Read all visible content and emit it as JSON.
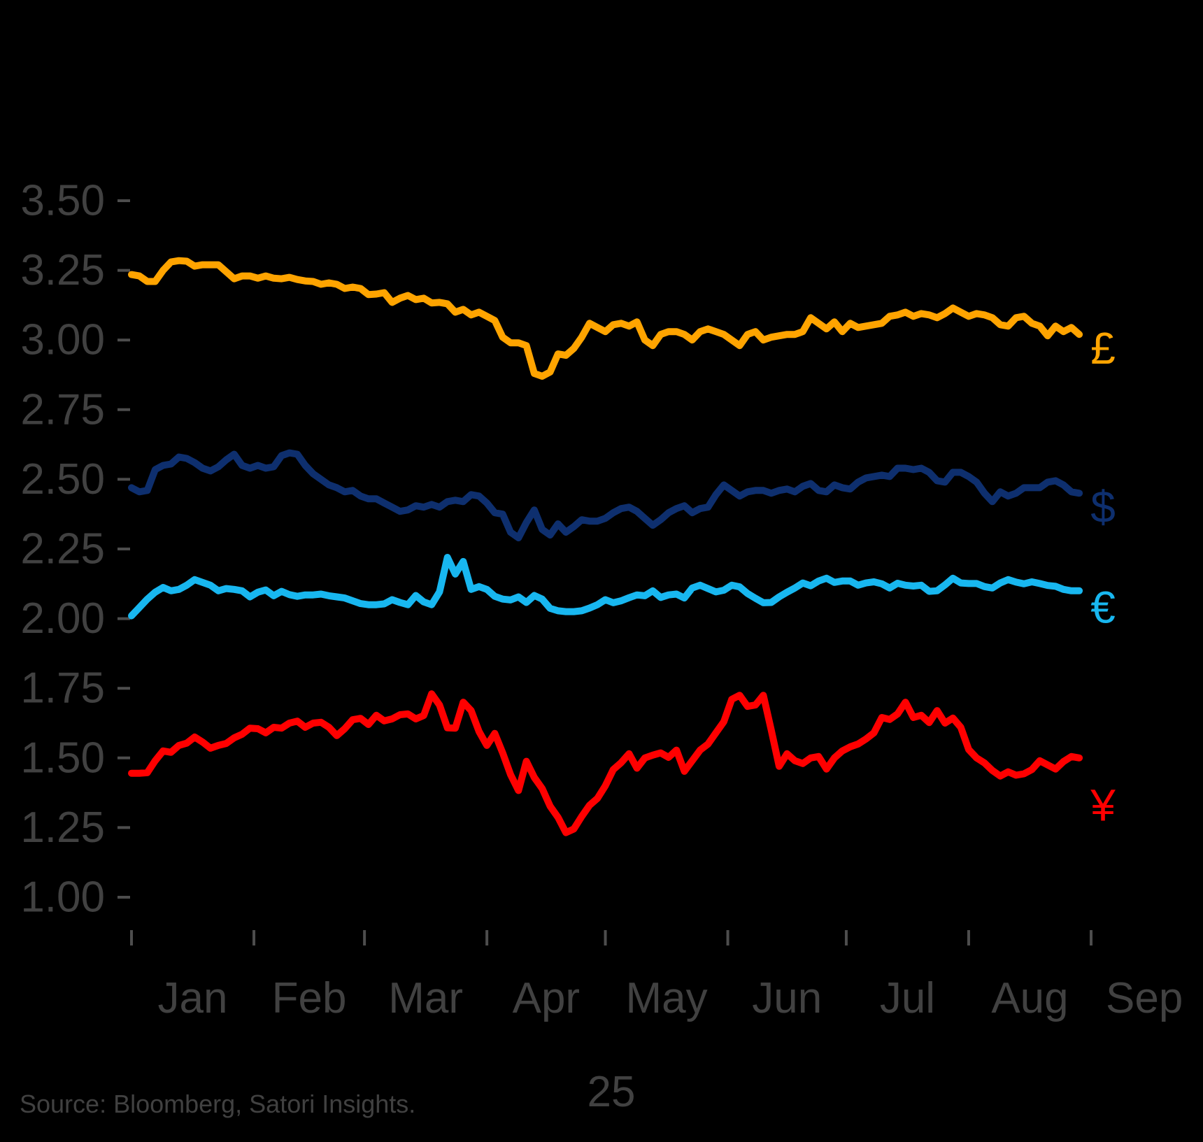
{
  "chart_data": {
    "type": "line",
    "title": "",
    "x_axis": {
      "tick_labels": [
        "Jan",
        "Feb",
        "Mar",
        "Apr",
        "May",
        "Jun",
        "Jul",
        "Aug",
        "Sep"
      ],
      "year_label": "25",
      "month_start_day_offsets": [
        0,
        31,
        59,
        90,
        120,
        151,
        181,
        212,
        243
      ]
    },
    "y_axis": {
      "min": 1.0,
      "max": 3.5,
      "step": 0.25,
      "tick_format_decimals": 2
    },
    "sampling": {
      "start_day": 0,
      "step_days": 2
    },
    "grid": false,
    "legend_position": "right-of-line-end",
    "series": [
      {
        "name": "GBP",
        "symbol": "£",
        "color": "#FFA400",
        "label_value": 2.97,
        "values": [
          3.235,
          3.23,
          3.21,
          3.21,
          3.25,
          3.28,
          3.285,
          3.283,
          3.265,
          3.27,
          3.27,
          3.27,
          3.245,
          3.22,
          3.23,
          3.23,
          3.222,
          3.23,
          3.222,
          3.22,
          3.225,
          3.217,
          3.212,
          3.21,
          3.2,
          3.205,
          3.2,
          3.185,
          3.19,
          3.185,
          3.163,
          3.165,
          3.17,
          3.135,
          3.15,
          3.16,
          3.145,
          3.15,
          3.133,
          3.135,
          3.13,
          3.1,
          3.11,
          3.09,
          3.1,
          3.085,
          3.07,
          3.01,
          2.99,
          2.99,
          2.98,
          2.88,
          2.87,
          2.885,
          2.95,
          2.945,
          2.97,
          3.01,
          3.06,
          3.045,
          3.03,
          3.055,
          3.06,
          3.05,
          3.065,
          3.0,
          2.98,
          3.02,
          3.03,
          3.03,
          3.02,
          3.0,
          3.03,
          3.04,
          3.03,
          3.02,
          3.0,
          2.98,
          3.02,
          3.03,
          3.0,
          3.01,
          3.015,
          3.02,
          3.02,
          3.03,
          3.08,
          3.06,
          3.04,
          3.065,
          3.03,
          3.06,
          3.045,
          3.05,
          3.055,
          3.06,
          3.085,
          3.09,
          3.1,
          3.085,
          3.095,
          3.09,
          3.08,
          3.095,
          3.115,
          3.1,
          3.085,
          3.095,
          3.09,
          3.08,
          3.055,
          3.05,
          3.08,
          3.085,
          3.06,
          3.05,
          3.015,
          3.05,
          3.03,
          3.045,
          3.02
        ]
      },
      {
        "name": "USD",
        "symbol": "$",
        "color": "#0E2F6E",
        "label_value": 2.4,
        "values": [
          2.47,
          2.455,
          2.46,
          2.535,
          2.55,
          2.555,
          2.58,
          2.575,
          2.56,
          2.54,
          2.53,
          2.545,
          2.57,
          2.59,
          2.55,
          2.54,
          2.55,
          2.54,
          2.545,
          2.585,
          2.595,
          2.59,
          2.55,
          2.52,
          2.5,
          2.48,
          2.47,
          2.455,
          2.46,
          2.44,
          2.43,
          2.43,
          2.415,
          2.4,
          2.385,
          2.39,
          2.405,
          2.4,
          2.41,
          2.4,
          2.42,
          2.425,
          2.42,
          2.445,
          2.44,
          2.415,
          2.38,
          2.375,
          2.31,
          2.29,
          2.345,
          2.39,
          2.32,
          2.3,
          2.34,
          2.31,
          2.33,
          2.355,
          2.35,
          2.35,
          2.36,
          2.38,
          2.395,
          2.4,
          2.385,
          2.36,
          2.335,
          2.355,
          2.38,
          2.395,
          2.405,
          2.38,
          2.395,
          2.4,
          2.445,
          2.48,
          2.46,
          2.44,
          2.455,
          2.46,
          2.46,
          2.45,
          2.46,
          2.465,
          2.455,
          2.475,
          2.485,
          2.46,
          2.455,
          2.48,
          2.47,
          2.465,
          2.49,
          2.505,
          2.51,
          2.515,
          2.51,
          2.54,
          2.54,
          2.535,
          2.54,
          2.525,
          2.495,
          2.49,
          2.525,
          2.525,
          2.51,
          2.49,
          2.45,
          2.42,
          2.455,
          2.44,
          2.45,
          2.47,
          2.47,
          2.47,
          2.49,
          2.495,
          2.48,
          2.455,
          2.45
        ]
      },
      {
        "name": "EUR",
        "symbol": "€",
        "color": "#18B7F0",
        "label_value": 2.04,
        "values": [
          2.01,
          2.04,
          2.07,
          2.095,
          2.112,
          2.1,
          2.105,
          2.12,
          2.14,
          2.13,
          2.12,
          2.1,
          2.108,
          2.105,
          2.1,
          2.078,
          2.095,
          2.103,
          2.082,
          2.098,
          2.086,
          2.08,
          2.085,
          2.085,
          2.088,
          2.082,
          2.078,
          2.074,
          2.064,
          2.054,
          2.05,
          2.05,
          2.053,
          2.068,
          2.058,
          2.05,
          2.083,
          2.06,
          2.05,
          2.096,
          2.22,
          2.16,
          2.205,
          2.105,
          2.115,
          2.105,
          2.08,
          2.07,
          2.067,
          2.078,
          2.058,
          2.083,
          2.07,
          2.037,
          2.028,
          2.025,
          2.025,
          2.028,
          2.038,
          2.05,
          2.068,
          2.057,
          2.064,
          2.075,
          2.085,
          2.082,
          2.1,
          2.076,
          2.085,
          2.088,
          2.074,
          2.11,
          2.12,
          2.108,
          2.096,
          2.102,
          2.12,
          2.114,
          2.09,
          2.073,
          2.057,
          2.058,
          2.078,
          2.095,
          2.11,
          2.128,
          2.118,
          2.135,
          2.145,
          2.13,
          2.135,
          2.135,
          2.12,
          2.128,
          2.132,
          2.125,
          2.11,
          2.127,
          2.12,
          2.117,
          2.12,
          2.098,
          2.1,
          2.121,
          2.145,
          2.128,
          2.126,
          2.126,
          2.115,
          2.11,
          2.128,
          2.14,
          2.131,
          2.125,
          2.132,
          2.126,
          2.119,
          2.116,
          2.105,
          2.1,
          2.1
        ]
      },
      {
        "name": "JPY",
        "symbol": "¥",
        "color": "#FF0000",
        "label_value": 1.33,
        "values": [
          1.445,
          1.445,
          1.447,
          1.49,
          1.525,
          1.52,
          1.545,
          1.553,
          1.575,
          1.557,
          1.535,
          1.545,
          1.552,
          1.572,
          1.585,
          1.607,
          1.605,
          1.59,
          1.61,
          1.607,
          1.625,
          1.632,
          1.61,
          1.625,
          1.628,
          1.61,
          1.58,
          1.605,
          1.637,
          1.642,
          1.62,
          1.653,
          1.633,
          1.64,
          1.655,
          1.658,
          1.64,
          1.652,
          1.73,
          1.69,
          1.608,
          1.607,
          1.7,
          1.67,
          1.595,
          1.545,
          1.588,
          1.518,
          1.44,
          1.383,
          1.488,
          1.43,
          1.39,
          1.327,
          1.287,
          1.232,
          1.245,
          1.29,
          1.33,
          1.355,
          1.4,
          1.458,
          1.483,
          1.515,
          1.463,
          1.5,
          1.51,
          1.518,
          1.502,
          1.528,
          1.452,
          1.49,
          1.528,
          1.55,
          1.59,
          1.63,
          1.71,
          1.725,
          1.685,
          1.69,
          1.725,
          1.6,
          1.47,
          1.515,
          1.49,
          1.48,
          1.5,
          1.505,
          1.46,
          1.5,
          1.525,
          1.54,
          1.55,
          1.568,
          1.59,
          1.645,
          1.638,
          1.658,
          1.7,
          1.645,
          1.653,
          1.627,
          1.67,
          1.625,
          1.643,
          1.61,
          1.53,
          1.5,
          1.482,
          1.455,
          1.435,
          1.45,
          1.438,
          1.443,
          1.458,
          1.49,
          1.475,
          1.46,
          1.487,
          1.505,
          1.5
        ]
      }
    ]
  },
  "footer": {
    "source_text": "Source: Bloomberg, Satori Insights."
  },
  "colors": {
    "background": "#000000",
    "axis_text": "#414141",
    "tick": "#4d4d4d"
  }
}
